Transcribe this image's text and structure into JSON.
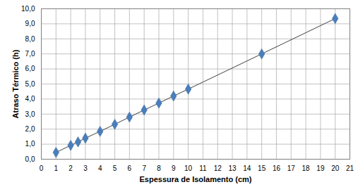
{
  "chart_data": {
    "type": "line",
    "x_label": "Espessura de Isolamento (cm)",
    "y_label": "Atraso Térmico (h)",
    "x": [
      1,
      2,
      2.5,
      3,
      4,
      5,
      6,
      7,
      8,
      9,
      10,
      15,
      20
    ],
    "values": [
      0.45,
      0.92,
      1.15,
      1.4,
      1.85,
      2.32,
      2.8,
      3.27,
      3.73,
      4.2,
      4.66,
      7.0,
      9.35
    ],
    "color": "#4a7ebb",
    "marker": "diamond",
    "xlim": [
      0,
      21
    ],
    "xticks": [
      0,
      1,
      2,
      3,
      4,
      5,
      6,
      7,
      8,
      9,
      10,
      11,
      12,
      13,
      14,
      15,
      16,
      17,
      18,
      19,
      20,
      21
    ],
    "ylim": [
      0,
      10
    ],
    "yticks": [
      {
        "value": 0,
        "label": "0,0"
      },
      {
        "value": 1,
        "label": "1,0"
      },
      {
        "value": 2,
        "label": "2,0"
      },
      {
        "value": 3,
        "label": "3,0"
      },
      {
        "value": 4,
        "label": "4,0"
      },
      {
        "value": 5,
        "label": "5,0"
      },
      {
        "value": 6,
        "label": "6,0"
      },
      {
        "value": 7,
        "label": "7,0"
      },
      {
        "value": 8,
        "label": "8,0"
      },
      {
        "value": 9,
        "label": "9,0"
      },
      {
        "value": 10,
        "label": "10,0"
      }
    ],
    "grid": true
  }
}
